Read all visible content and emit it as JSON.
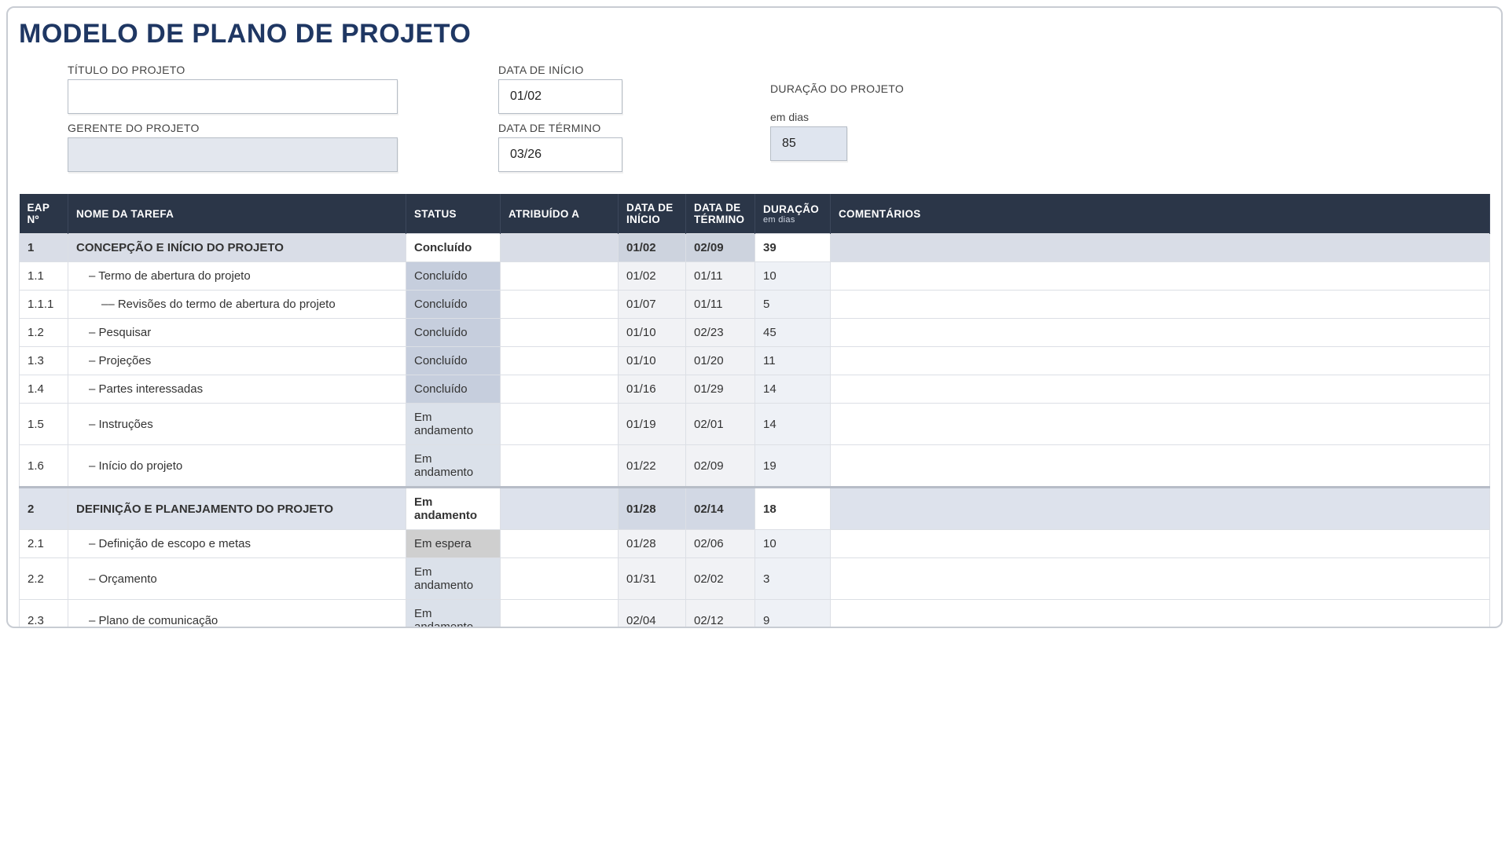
{
  "title": "MODELO DE PLANO DE PROJETO",
  "meta": {
    "labels": {
      "projectTitle": "TÍTULO DO PROJETO",
      "projectManager": "GERENTE DO PROJETO",
      "startDate": "DATA DE INÍCIO",
      "endDate": "DATA DE TÉRMINO",
      "duration": "DURAÇÃO DO PROJETO",
      "durationUnit": "em dias"
    },
    "values": {
      "projectTitle": "",
      "projectManager": "",
      "startDate": "01/02",
      "endDate": "03/26",
      "durationDays": "85"
    }
  },
  "columns": {
    "wbs": "EAP Nº",
    "name": "NOME DA TAREFA",
    "status": "STATUS",
    "assigned": "ATRIBUÍDO A",
    "start": "DATA DE INÍCIO",
    "end": "DATA DE TÉRMINO",
    "duration": "DURAÇÃO",
    "durationUnit": "em dias",
    "comments": "COMENTÁRIOS"
  },
  "statusValues": {
    "done": "Concluído",
    "inprogress": "Em andamento",
    "hold": "Em espera"
  },
  "rows": [
    {
      "type": "section",
      "wbs": "1",
      "name": "CONCEPÇÃO E INÍCIO DO PROJETO",
      "status": "done",
      "assigned": "",
      "start": "01/02",
      "end": "02/09",
      "dur": "39",
      "comments": ""
    },
    {
      "type": "task",
      "indent": 1,
      "wbs": "1.1",
      "name": "– Termo de abertura do projeto",
      "status": "done",
      "assigned": "",
      "start": "01/02",
      "end": "01/11",
      "dur": "10",
      "comments": ""
    },
    {
      "type": "task",
      "indent": 2,
      "wbs": "1.1.1",
      "name": "–– Revisões do termo de abertura do projeto",
      "status": "done",
      "assigned": "",
      "start": "01/07",
      "end": "01/11",
      "dur": "5",
      "comments": ""
    },
    {
      "type": "task",
      "indent": 1,
      "wbs": "1.2",
      "name": "– Pesquisar",
      "status": "done",
      "assigned": "",
      "start": "01/10",
      "end": "02/23",
      "dur": "45",
      "comments": ""
    },
    {
      "type": "task",
      "indent": 1,
      "wbs": "1.3",
      "name": "– Projeções",
      "status": "done",
      "assigned": "",
      "start": "01/10",
      "end": "01/20",
      "dur": "11",
      "comments": ""
    },
    {
      "type": "task",
      "indent": 1,
      "wbs": "1.4",
      "name": "– Partes interessadas",
      "status": "done",
      "assigned": "",
      "start": "01/16",
      "end": "01/29",
      "dur": "14",
      "comments": ""
    },
    {
      "type": "task",
      "indent": 1,
      "wbs": "1.5",
      "name": "– Instruções",
      "status": "inprogress",
      "assigned": "",
      "start": "01/19",
      "end": "02/01",
      "dur": "14",
      "comments": ""
    },
    {
      "type": "task",
      "indent": 1,
      "wbs": "1.6",
      "name": "– Início do projeto",
      "status": "inprogress",
      "assigned": "",
      "start": "01/22",
      "end": "02/09",
      "dur": "19",
      "comments": ""
    },
    {
      "type": "section-b",
      "sep": true,
      "wbs": "2",
      "name": "DEFINIÇÃO E PLANEJAMENTO DO PROJETO",
      "status": "inprogress",
      "assigned": "",
      "start": "01/28",
      "end": "02/14",
      "dur": "18",
      "comments": ""
    },
    {
      "type": "task",
      "indent": 1,
      "wbs": "2.1",
      "name": "– Definição de escopo e metas",
      "status": "hold",
      "assigned": "",
      "start": "01/28",
      "end": "02/06",
      "dur": "10",
      "comments": ""
    },
    {
      "type": "task",
      "indent": 1,
      "wbs": "2.2",
      "name": "– Orçamento",
      "status": "inprogress",
      "assigned": "",
      "start": "01/31",
      "end": "02/02",
      "dur": "3",
      "comments": ""
    },
    {
      "type": "task",
      "indent": 1,
      "wbs": "2.3",
      "name": "– Plano de comunicação",
      "status": "inprogress",
      "assigned": "",
      "start": "02/04",
      "end": "02/12",
      "dur": "9",
      "comments": ""
    }
  ],
  "style": {
    "colors": {
      "heading": "#1f3763",
      "tableHeaderBg": "#2b3648",
      "sectionBg": "#d9dde7",
      "sectionBBg": "#dde2ec",
      "statusDoneBg": "#c6cedd",
      "statusProgressBg": "#dbe1ea",
      "statusHoldBg": "#cfcfcf",
      "dateCellBg": "#f1f2f5",
      "durCellBg": "#eef1f6",
      "border": "#dcdfe5",
      "outerBorder": "#c8ccd3"
    },
    "fonts": {
      "title_pt": 34,
      "header_pt": 13.5,
      "body_pt": 15
    },
    "columnWidthsPx": {
      "wbs": 62,
      "name": 430,
      "status": 120,
      "assigned": 150,
      "start": 86,
      "end": 88,
      "dur": 96
    }
  }
}
